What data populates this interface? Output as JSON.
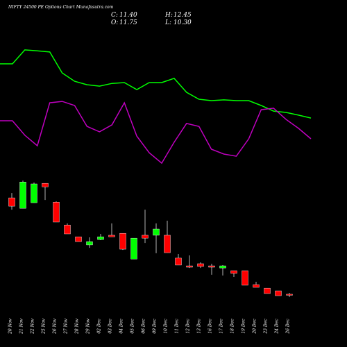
{
  "chart_data": {
    "type": "candlestick",
    "title": "NIFTY 24500 PE Options Chart Munafasutra.com",
    "ohlc_header": [
      {
        "label": "C:",
        "value": "11.40"
      },
      {
        "label": "H:",
        "value": "12.45"
      },
      {
        "label": "O:",
        "value": "11.75"
      },
      {
        "label": "L:",
        "value": "10.30"
      }
    ],
    "categories": [
      "20 Nov",
      "21 Nov",
      "22 Nov",
      "25 Nov",
      "26 Nov",
      "27 Nov",
      "28 Nov",
      "29 Nov",
      "02 Dec",
      "03 Dec",
      "04 Dec",
      "05 Dec",
      "06 Dec",
      "09 Dec",
      "10 Dec",
      "11 Dec",
      "12 Dec",
      "13 Dec",
      "16 Dec",
      "17 Dec",
      "18 Dec",
      "19 Dec",
      "20 Dec",
      "23 Dec",
      "24 Dec",
      "26 Dec"
    ],
    "open": [
      61.5,
      56.1,
      59.0,
      69.0,
      59.3,
      47.5,
      41.4,
      37.2,
      40.0,
      42.2,
      43.2,
      29.9,
      42.2,
      42.2,
      42.2,
      30.4,
      26.4,
      27.5,
      26.4,
      25.3,
      23.9,
      23.9,
      16.7,
      14.9,
      13.5,
      11.75
    ],
    "close": [
      57.2,
      69.7,
      68.7,
      67.2,
      49.0,
      42.9,
      38.9,
      38.9,
      41.4,
      41.4,
      35.0,
      40.7,
      40.7,
      45.4,
      33.2,
      26.8,
      25.7,
      26.1,
      25.7,
      26.4,
      22.5,
      16.4,
      15.3,
      12.1,
      11.0,
      11.4
    ],
    "high": [
      64.0,
      70.4,
      69.4,
      69.0,
      59.7,
      48.3,
      41.4,
      41.1,
      42.9,
      48.3,
      43.2,
      40.7,
      55.4,
      48.3,
      49.7,
      32.5,
      31.8,
      28.2,
      27.5,
      26.8,
      23.2,
      23.9,
      18.2,
      14.9,
      13.5,
      12.45
    ],
    "low": [
      55.4,
      56.1,
      59.0,
      60.4,
      49.0,
      42.9,
      38.9,
      35.7,
      39.7,
      41.4,
      34.6,
      29.9,
      38.2,
      32.9,
      33.2,
      26.8,
      25.3,
      25.3,
      21.8,
      21.4,
      20.7,
      16.4,
      15.3,
      12.1,
      11.0,
      10.3
    ],
    "up_color": "#00ff00",
    "down_color": "#ff0000",
    "lines": [
      {
        "color": "#00ff00",
        "values": [
          130.7,
          130.7,
          137.9,
          137.4,
          136.8,
          126.0,
          121.7,
          119.9,
          119.2,
          120.6,
          121.0,
          117.4,
          121.0,
          121.0,
          123.2,
          116.0,
          112.4,
          111.7,
          112.1,
          111.7,
          111.7,
          109.2,
          106.3,
          105.6,
          104.2,
          102.7
        ]
      },
      {
        "color": "#c000c0",
        "values": [
          101.3,
          101.3,
          93.8,
          88.4,
          110.6,
          111.3,
          109.2,
          98.4,
          95.6,
          99.2,
          110.6,
          93.4,
          84.8,
          79.4,
          90.2,
          99.9,
          98.4,
          86.6,
          84.1,
          83.0,
          92.0,
          107.0,
          107.8,
          102.0,
          97.4,
          92.0
        ]
      }
    ],
    "ylim": [
      -15.5,
      163.65
    ]
  }
}
